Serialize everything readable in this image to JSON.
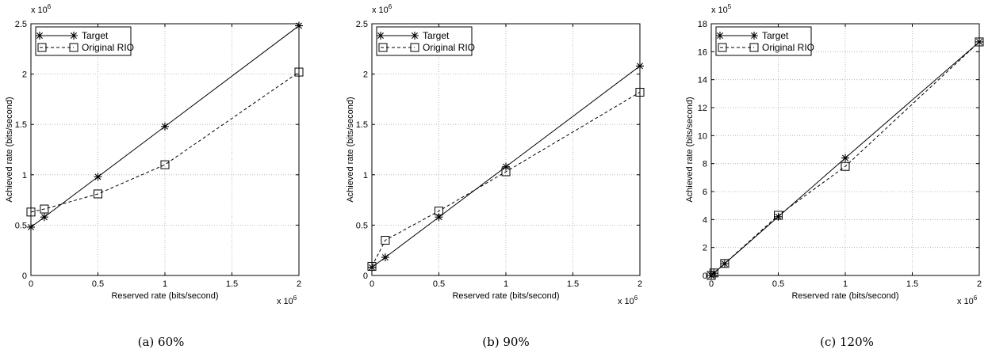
{
  "chart_data": [
    {
      "type": "line",
      "caption": "(a) 60%",
      "xlabel": "Reserved rate (bits/second)",
      "ylabel": "Achieved rate (bits/second)",
      "x_multiplier": "x 10^6",
      "y_multiplier": "x 10^6",
      "xlim": [
        0,
        2000000
      ],
      "ylim": [
        0,
        2500000
      ],
      "x_ticks": [
        0,
        500000,
        1000000,
        1500000,
        2000000
      ],
      "x_tick_labels": [
        "0",
        "0.5",
        "1",
        "1.5",
        "2"
      ],
      "y_ticks": [
        0,
        500000,
        1000000,
        1500000,
        2000000,
        2500000
      ],
      "y_tick_labels": [
        "0",
        "0.5",
        "1",
        "1.5",
        "2",
        "2.5"
      ],
      "grid": true,
      "legend_position": "top-left",
      "series": [
        {
          "name": "Target",
          "marker": "asterisk",
          "line": "solid",
          "x": [
            0,
            100000,
            500000,
            1000000,
            2000000
          ],
          "y": [
            480000,
            580000,
            980000,
            1480000,
            2480000
          ]
        },
        {
          "name": "Original RIO",
          "marker": "square",
          "line": "dashed",
          "x": [
            0,
            100000,
            500000,
            1000000,
            2000000
          ],
          "y": [
            630000,
            660000,
            810000,
            1100000,
            2020000
          ]
        }
      ]
    },
    {
      "type": "line",
      "caption": "(b) 90%",
      "xlabel": "Reserved rate (bits/second)",
      "ylabel": "Achieved rate (bits/second)",
      "x_multiplier": "x 10^6",
      "y_multiplier": "x 10^6",
      "xlim": [
        0,
        2000000
      ],
      "ylim": [
        0,
        2500000
      ],
      "x_ticks": [
        0,
        500000,
        1000000,
        1500000,
        2000000
      ],
      "x_tick_labels": [
        "0",
        "0.5",
        "1",
        "1.5",
        "2"
      ],
      "y_ticks": [
        0,
        500000,
        1000000,
        1500000,
        2000000,
        2500000
      ],
      "y_tick_labels": [
        "0",
        "0.5",
        "1",
        "1.5",
        "2",
        "2.5"
      ],
      "grid": true,
      "legend_position": "top-left",
      "series": [
        {
          "name": "Target",
          "marker": "asterisk",
          "line": "solid",
          "x": [
            0,
            100000,
            500000,
            1000000,
            2000000
          ],
          "y": [
            80000,
            180000,
            580000,
            1080000,
            2080000
          ]
        },
        {
          "name": "Original RIO",
          "marker": "square",
          "line": "dashed",
          "x": [
            0,
            100000,
            500000,
            1000000,
            2000000
          ],
          "y": [
            90000,
            350000,
            640000,
            1030000,
            1820000
          ]
        }
      ]
    },
    {
      "type": "line",
      "caption": "(c) 120%",
      "xlabel": "Reserved rate (bits/second)",
      "ylabel": "Achieved rate (bits/second)",
      "x_multiplier": "x 10^6",
      "y_multiplier": "x 10^5",
      "xlim": [
        0,
        2000000
      ],
      "ylim": [
        0,
        1800000
      ],
      "x_ticks": [
        0,
        500000,
        1000000,
        1500000,
        2000000
      ],
      "x_tick_labels": [
        "0",
        "0.5",
        "1",
        "1.5",
        "2"
      ],
      "y_ticks": [
        0,
        200000,
        400000,
        600000,
        800000,
        1000000,
        1200000,
        1400000,
        1600000,
        1800000
      ],
      "y_tick_labels": [
        "0",
        "2",
        "4",
        "6",
        "8",
        "10",
        "12",
        "14",
        "16",
        "18"
      ],
      "grid": true,
      "legend_position": "top-left",
      "series": [
        {
          "name": "Target",
          "marker": "asterisk",
          "line": "solid",
          "x": [
            0,
            20000,
            100000,
            500000,
            1000000,
            2000000
          ],
          "y": [
            0,
            16000,
            84000,
            420000,
            840000,
            1670000
          ]
        },
        {
          "name": "Original RIO",
          "marker": "square",
          "line": "dashed",
          "x": [
            0,
            20000,
            100000,
            500000,
            1000000,
            2000000
          ],
          "y": [
            0,
            18000,
            86000,
            430000,
            780000,
            1670000
          ]
        }
      ]
    }
  ]
}
